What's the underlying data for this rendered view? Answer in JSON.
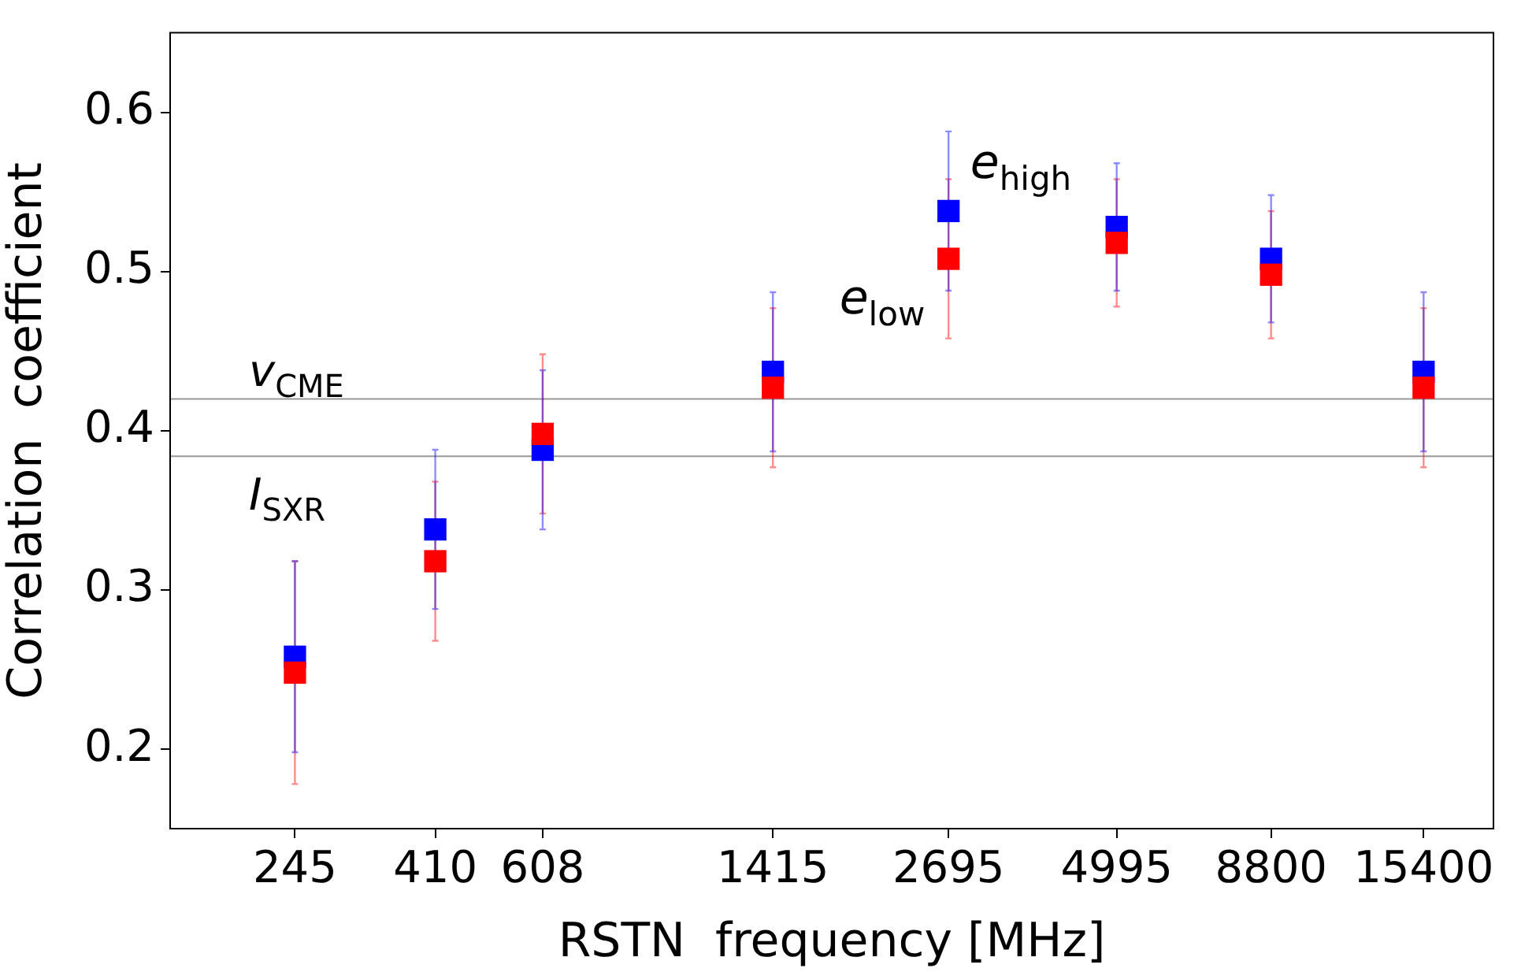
{
  "chart_data": {
    "type": "scatter",
    "xlabel": "RSTN  frequency [MHz]",
    "ylabel": "Correlation  coefficient",
    "log": "x",
    "x": [
      245,
      410,
      608,
      1415,
      2695,
      4995,
      8800,
      15400
    ],
    "xlim": [
      155,
      19900
    ],
    "xticks": [
      245,
      410,
      608,
      1415,
      2695,
      4995,
      8800,
      15400
    ],
    "ylim": [
      0.15,
      0.65
    ],
    "yticks": [
      0.2,
      0.3,
      0.4,
      0.5,
      0.6
    ],
    "marker": "square",
    "grid": false,
    "legend": false,
    "series": [
      {
        "color": "#ff0000",
        "values": [
          0.248,
          0.318,
          0.398,
          0.427,
          0.508,
          0.518,
          0.498,
          0.427
        ],
        "errors": [
          0.07,
          0.05,
          0.05,
          0.05,
          0.05,
          0.04,
          0.04,
          0.05
        ]
      },
      {
        "color": "#0000ff",
        "values": [
          0.258,
          0.338,
          0.388,
          0.437,
          0.538,
          0.528,
          0.508,
          0.437
        ],
        "errors": [
          0.06,
          0.05,
          0.05,
          0.05,
          0.05,
          0.04,
          0.04,
          0.05
        ]
      }
    ],
    "ref_lines": [
      {
        "axis": "y",
        "value": 0.42,
        "label": "v$_{CME}$",
        "color": "#999999"
      },
      {
        "axis": "y",
        "value": 0.384,
        "label": "I$_{SXR}$",
        "color": "#999999"
      }
    ],
    "annotations": [
      "e$_{high}$",
      "e$_{low}$"
    ]
  }
}
